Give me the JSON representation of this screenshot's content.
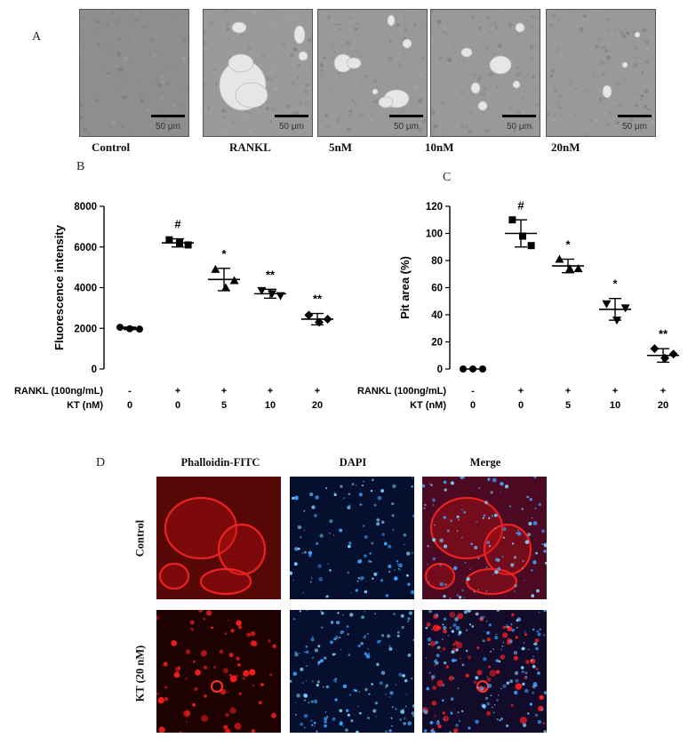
{
  "panels": {
    "a_letter": "A",
    "b_letter": "B",
    "c_letter": "C",
    "d_letter": "D"
  },
  "micrographs": [
    {
      "label": "Control",
      "scale_bar": "50 μm"
    },
    {
      "label": "RANKL",
      "scale_bar": "50 μm"
    },
    {
      "label": "5nM",
      "scale_bar": "50 μm"
    },
    {
      "label": "10nM",
      "scale_bar": "50 μm"
    },
    {
      "label": "20nM",
      "scale_bar": "50 μm"
    }
  ],
  "fluorescence": {
    "columns": [
      "Phalloidin-FITC",
      "DAPI",
      "Merge"
    ],
    "rows": [
      "Control",
      "KT (20 nM)"
    ]
  },
  "chart_data": [
    {
      "type": "scatter",
      "panel": "B",
      "ylabel": "Fluorescence intensity",
      "ylim": [
        0,
        8000
      ],
      "yticks": [
        "0",
        "2000",
        "4000",
        "6000",
        "8000"
      ],
      "row_labels": [
        "RANKL (100ng/mL)",
        "KT (nM)"
      ],
      "categories": [
        {
          "rankl": "-",
          "kt": "0"
        },
        {
          "rankl": "+",
          "kt": "0"
        },
        {
          "rankl": "+",
          "kt": "5"
        },
        {
          "rankl": "+",
          "kt": "10"
        },
        {
          "rankl": "+",
          "kt": "20"
        }
      ],
      "means": [
        2000,
        6200,
        4400,
        3700,
        2450
      ],
      "sd": [
        60,
        200,
        550,
        220,
        280
      ],
      "points": [
        [
          2050,
          1980,
          1960
        ],
        [
          6350,
          6200,
          6100
        ],
        [
          4900,
          4000,
          4350
        ],
        [
          3850,
          3700,
          3600
        ],
        [
          2650,
          2300,
          2450
        ]
      ],
      "markers": [
        "circle",
        "square",
        "triangle",
        "triangle-down",
        "diamond"
      ],
      "annotations": [
        "",
        "#",
        "*",
        "**",
        "**"
      ]
    },
    {
      "type": "scatter",
      "panel": "C",
      "ylabel": "Pit area (%)",
      "ylim": [
        0,
        120
      ],
      "yticks": [
        "0",
        "20",
        "40",
        "60",
        "80",
        "100",
        "120"
      ],
      "row_labels": [
        "RANKL (100ng/mL)",
        "KT (nM)"
      ],
      "categories": [
        {
          "rankl": "-",
          "kt": "0"
        },
        {
          "rankl": "+",
          "kt": "0"
        },
        {
          "rankl": "+",
          "kt": "5"
        },
        {
          "rankl": "+",
          "kt": "10"
        },
        {
          "rankl": "+",
          "kt": "20"
        }
      ],
      "means": [
        0,
        100,
        76,
        44,
        10
      ],
      "sd": [
        0,
        10,
        5,
        8,
        5
      ],
      "points": [
        [
          0,
          0,
          0
        ],
        [
          110,
          98,
          91
        ],
        [
          81,
          74,
          74
        ],
        [
          48,
          36,
          45
        ],
        [
          15,
          8,
          11
        ]
      ],
      "markers": [
        "circle",
        "square",
        "triangle",
        "triangle-down",
        "diamond"
      ],
      "annotations": [
        "",
        "#",
        "*",
        "*",
        "**"
      ]
    }
  ]
}
